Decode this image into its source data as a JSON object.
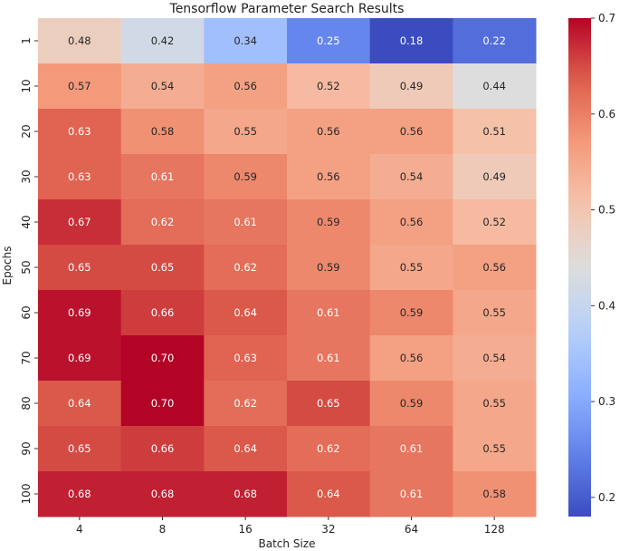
{
  "chart_data": {
    "type": "heatmap",
    "title": "Tensorflow Parameter Search Results",
    "xlabel": "Batch Size",
    "ylabel": "Epochs",
    "x_categories": [
      "4",
      "8",
      "16",
      "32",
      "64",
      "128"
    ],
    "y_categories": [
      "1",
      "10",
      "20",
      "30",
      "40",
      "50",
      "60",
      "70",
      "80",
      "90",
      "100"
    ],
    "values": [
      [
        0.48,
        0.42,
        0.34,
        0.25,
        0.18,
        0.22
      ],
      [
        0.57,
        0.54,
        0.56,
        0.52,
        0.49,
        0.44
      ],
      [
        0.63,
        0.58,
        0.55,
        0.56,
        0.56,
        0.51
      ],
      [
        0.63,
        0.61,
        0.59,
        0.56,
        0.54,
        0.49
      ],
      [
        0.67,
        0.62,
        0.61,
        0.59,
        0.56,
        0.52
      ],
      [
        0.65,
        0.65,
        0.62,
        0.59,
        0.55,
        0.56
      ],
      [
        0.69,
        0.66,
        0.64,
        0.61,
        0.59,
        0.55
      ],
      [
        0.69,
        0.7,
        0.63,
        0.61,
        0.56,
        0.54
      ],
      [
        0.64,
        0.7,
        0.62,
        0.65,
        0.59,
        0.55
      ],
      [
        0.65,
        0.66,
        0.64,
        0.62,
        0.61,
        0.55
      ],
      [
        0.68,
        0.68,
        0.68,
        0.64,
        0.61,
        0.58
      ]
    ],
    "value_labels": [
      [
        "0.48",
        "0.42",
        "0.34",
        "0.25",
        "0.18",
        "0.22"
      ],
      [
        "0.57",
        "0.54",
        "0.56",
        "0.52",
        "0.49",
        "0.44"
      ],
      [
        "0.63",
        "0.58",
        "0.55",
        "0.56",
        "0.56",
        "0.51"
      ],
      [
        "0.63",
        "0.61",
        "0.59",
        "0.56",
        "0.54",
        "0.49"
      ],
      [
        "0.67",
        "0.62",
        "0.61",
        "0.59",
        "0.56",
        "0.52"
      ],
      [
        "0.65",
        "0.65",
        "0.62",
        "0.59",
        "0.55",
        "0.56"
      ],
      [
        "0.69",
        "0.66",
        "0.64",
        "0.61",
        "0.59",
        "0.55"
      ],
      [
        "0.69",
        "0.70",
        "0.63",
        "0.61",
        "0.56",
        "0.54"
      ],
      [
        "0.64",
        "0.70",
        "0.62",
        "0.65",
        "0.59",
        "0.55"
      ],
      [
        "0.65",
        "0.66",
        "0.64",
        "0.62",
        "0.61",
        "0.55"
      ],
      [
        "0.68",
        "0.68",
        "0.68",
        "0.64",
        "0.61",
        "0.58"
      ]
    ],
    "colormap": "coolwarm",
    "vmin": 0.18,
    "vmax": 0.7,
    "colorbar_ticks": [
      0.2,
      0.3,
      0.4,
      0.5,
      0.6,
      0.7
    ],
    "colorbar_tick_labels": [
      "0.2",
      "0.3",
      "0.4",
      "0.5",
      "0.6",
      "0.7"
    ],
    "colors": {
      "low": "#3b4cc0",
      "mid": "#dddddd",
      "high": "#b40426",
      "cell_text_light": "#ffffff",
      "cell_text_dark": "#262626"
    }
  }
}
